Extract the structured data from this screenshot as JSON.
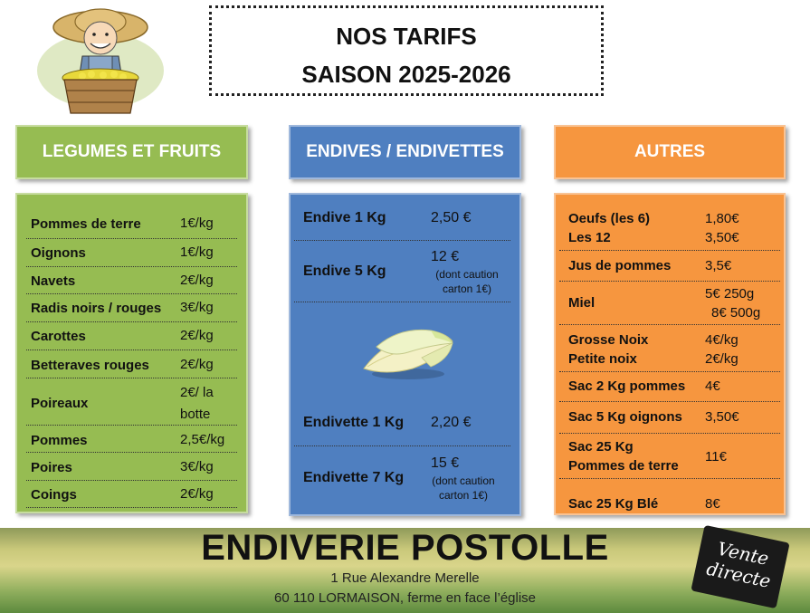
{
  "title": {
    "line1": "NOS TARIFS",
    "line2": "SAISON 2025-2026"
  },
  "columns": {
    "legumes": {
      "header": "LEGUMES ET FRUITS"
    },
    "endives": {
      "header": "ENDIVES / ENDIVETTES"
    },
    "autres": {
      "header": "AUTRES"
    }
  },
  "legumes": [
    {
      "name": "Pommes de terre",
      "price": "1€/kg"
    },
    {
      "name": "Oignons",
      "price": "1€/kg"
    },
    {
      "name": "Navets",
      "price": "2€/kg"
    },
    {
      "name": "Radis noirs / rouges",
      "price": "3€/kg"
    },
    {
      "name": "Carottes",
      "price": "2€/kg"
    },
    {
      "name": "Betteraves rouges",
      "price": "2€/kg"
    },
    {
      "name": "Poireaux",
      "price_line1": "2€/ la",
      "price_line2": "botte"
    },
    {
      "name": "Pommes",
      "price": "2,5€/kg"
    },
    {
      "name": "Poires",
      "price": "3€/kg"
    },
    {
      "name": "Coings",
      "price": "2€/kg"
    }
  ],
  "endives": [
    {
      "name": "Endive 1 Kg",
      "price": "2,50 €"
    },
    {
      "name": "Endive 5 Kg",
      "price": "12 €",
      "note_line1": "(dont caution",
      "note_line2": "carton 1€)"
    },
    {
      "name": "Endivette 1 Kg",
      "price": "2,20 €"
    },
    {
      "name": "Endivette 7 Kg",
      "price": "15 €",
      "note_line1": "(dont caution",
      "note_line2": "carton 1€)"
    }
  ],
  "autres": [
    {
      "name_line1": "Oeufs (les 6)",
      "name_line2": "Les 12",
      "price_line1": "1,80€",
      "price_line2": "3,50€"
    },
    {
      "name": "Jus de pommes",
      "price": "3,5€"
    },
    {
      "name": "Miel",
      "price_line1": "5€ 250g",
      "price_line2": "8€ 500g"
    },
    {
      "name_line1": "Grosse Noix",
      "name_line2": "Petite noix",
      "price_line1": "4€/kg",
      "price_line2": "2€/kg"
    },
    {
      "name": "Sac 2 Kg pommes",
      "price": "4€"
    },
    {
      "name": "Sac 5 Kg oignons",
      "price": "3,50€"
    },
    {
      "name_line1": "Sac 25 Kg",
      "name_line2": "Pommes de terre",
      "price": "11€"
    },
    {
      "name": "Sac 25 Kg Blé",
      "price": "8€"
    }
  ],
  "footer": {
    "company": "ENDIVERIE POSTOLLE",
    "address_line1": "1 Rue Alexandre Merelle",
    "address_line2": "60 110 LORMAISON, ferme en face l’église",
    "badge_line1": "Vente",
    "badge_line2": "directe"
  }
}
